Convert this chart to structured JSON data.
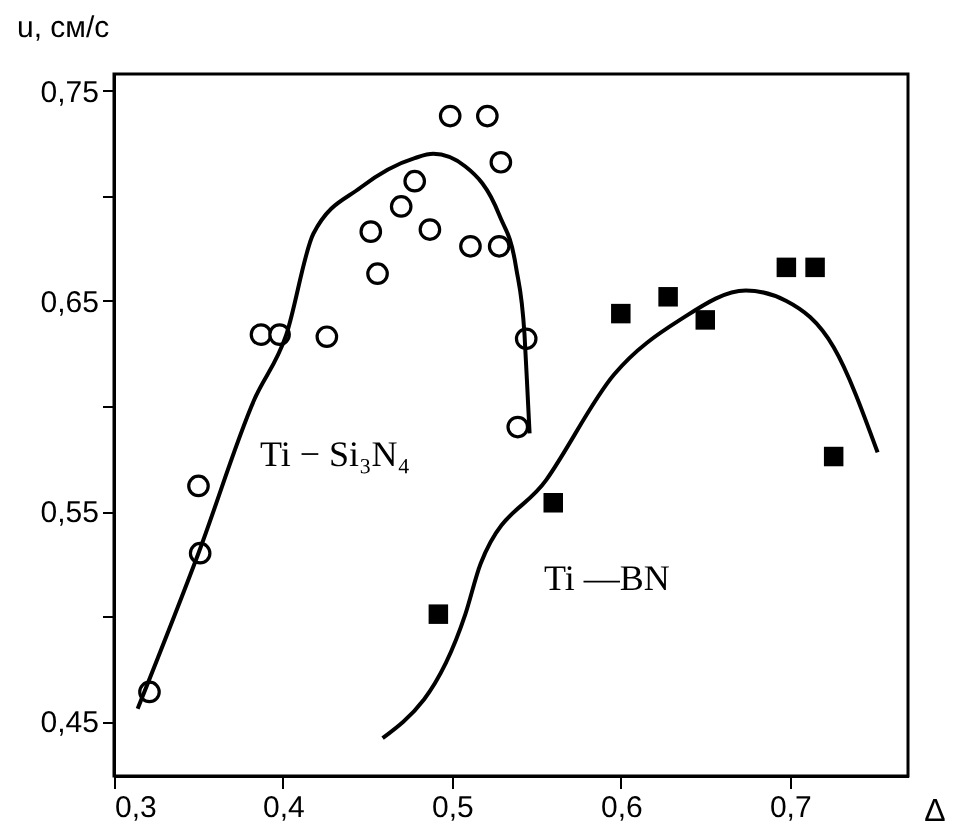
{
  "chart_data": {
    "type": "scatter",
    "xlabel": "Δ",
    "ylabel": "u, см/с",
    "xlim": [
      0.3,
      0.77
    ],
    "ylim": [
      0.424,
      0.758
    ],
    "xticks": [
      {
        "value": 0.3,
        "label": "0,3"
      },
      {
        "value": 0.4,
        "label": "0,4"
      },
      {
        "value": 0.5,
        "label": "0,5"
      },
      {
        "value": 0.6,
        "label": "0,6"
      },
      {
        "value": 0.7,
        "label": "0,7"
      }
    ],
    "yticks": [
      {
        "value": 0.45,
        "label": "0,45"
      },
      {
        "value": 0.5,
        "label": null
      },
      {
        "value": 0.55,
        "label": "0,55"
      },
      {
        "value": 0.6,
        "label": null
      },
      {
        "value": 0.65,
        "label": "0,65"
      },
      {
        "value": 0.7,
        "label": null
      },
      {
        "value": 0.75,
        "label": "0,75"
      }
    ],
    "grid": false,
    "series": [
      {
        "name": "Ti − Si₃N₄",
        "color": "#000000",
        "marker": "circle",
        "x": [
          0.321,
          0.35,
          0.351,
          0.387,
          0.398,
          0.426,
          0.452,
          0.456,
          0.47,
          0.478,
          0.487,
          0.499,
          0.511,
          0.521,
          0.528,
          0.529,
          0.539,
          0.544
        ],
        "values": [
          0.464,
          0.562,
          0.53,
          0.634,
          0.634,
          0.633,
          0.683,
          0.663,
          0.695,
          0.707,
          0.684,
          0.738,
          0.676,
          0.738,
          0.676,
          0.716,
          0.59,
          0.632
        ]
      },
      {
        "name": "Ti —BN",
        "color": "#000000",
        "marker": "square",
        "x": [
          0.492,
          0.56,
          0.6,
          0.628,
          0.65,
          0.698,
          0.715,
          0.726
        ],
        "values": [
          0.501,
          0.554,
          0.644,
          0.652,
          0.641,
          0.666,
          0.666,
          0.576
        ]
      },
      {
        "type": "line",
        "color": "#000000",
        "x": [
          0.314,
          0.35,
          0.383,
          0.402,
          0.418,
          0.446,
          0.478,
          0.489,
          0.508,
          0.528,
          0.538,
          0.543,
          0.545,
          0.546
        ],
        "values": [
          0.456,
          0.53,
          0.603,
          0.634,
          0.682,
          0.704,
          0.718,
          0.72,
          0.714,
          0.691,
          0.666,
          0.634,
          0.603,
          0.587
        ]
      },
      {
        "type": "line",
        "color": "#000000",
        "x": [
          0.459,
          0.508,
          0.517,
          0.556,
          0.596,
          0.635,
          0.674,
          0.698,
          0.726,
          0.752
        ],
        "values": [
          0.442,
          0.501,
          0.525,
          0.565,
          0.615,
          0.641,
          0.655,
          0.65,
          0.628,
          0.578
        ]
      }
    ]
  }
}
